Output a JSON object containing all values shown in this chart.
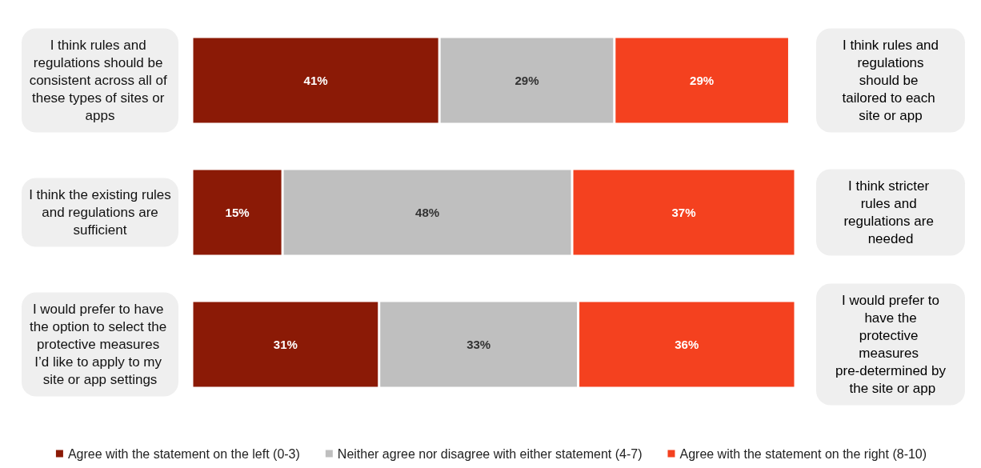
{
  "chart_data": {
    "type": "bar",
    "orientation": "horizontal",
    "stacked": true,
    "tick_labels": "y",
    "legend": "bottom",
    "categories": [
      "I think rules and regulations should be consistent across all of these types of sites or apps",
      "I think the existing rules and regulations are sufficient",
      "I would prefer to have the option to select the protective measures I’d like to apply to my site or app settings"
    ],
    "xlim": [
      0,
      100
    ],
    "series": [
      {
        "name": "Agree with the statement on the left (0-3)",
        "color": "#8b1a06",
        "values": [
          41,
          15,
          31
        ],
        "value_labels": [
          "41%",
          "15%",
          "31%"
        ]
      },
      {
        "name": "Neither agree nor disagree with either statement (4-7)",
        "color": "#bfbfbf",
        "values": [
          29,
          48,
          33
        ],
        "value_labels": [
          "29%",
          "48%",
          "33%"
        ]
      },
      {
        "name": "Agree with the statement on the right (8-10)",
        "color": "#f4411f",
        "values": [
          29,
          37,
          36
        ],
        "value_labels": [
          "29%",
          "37%",
          "36%"
        ]
      }
    ],
    "annotations": [
      "I think rules and regulations should be tailored to each site or app",
      "I think stricter rules and regulations are needed",
      "I would prefer to have the protective measures pre-determined by the site or app"
    ]
  }
}
